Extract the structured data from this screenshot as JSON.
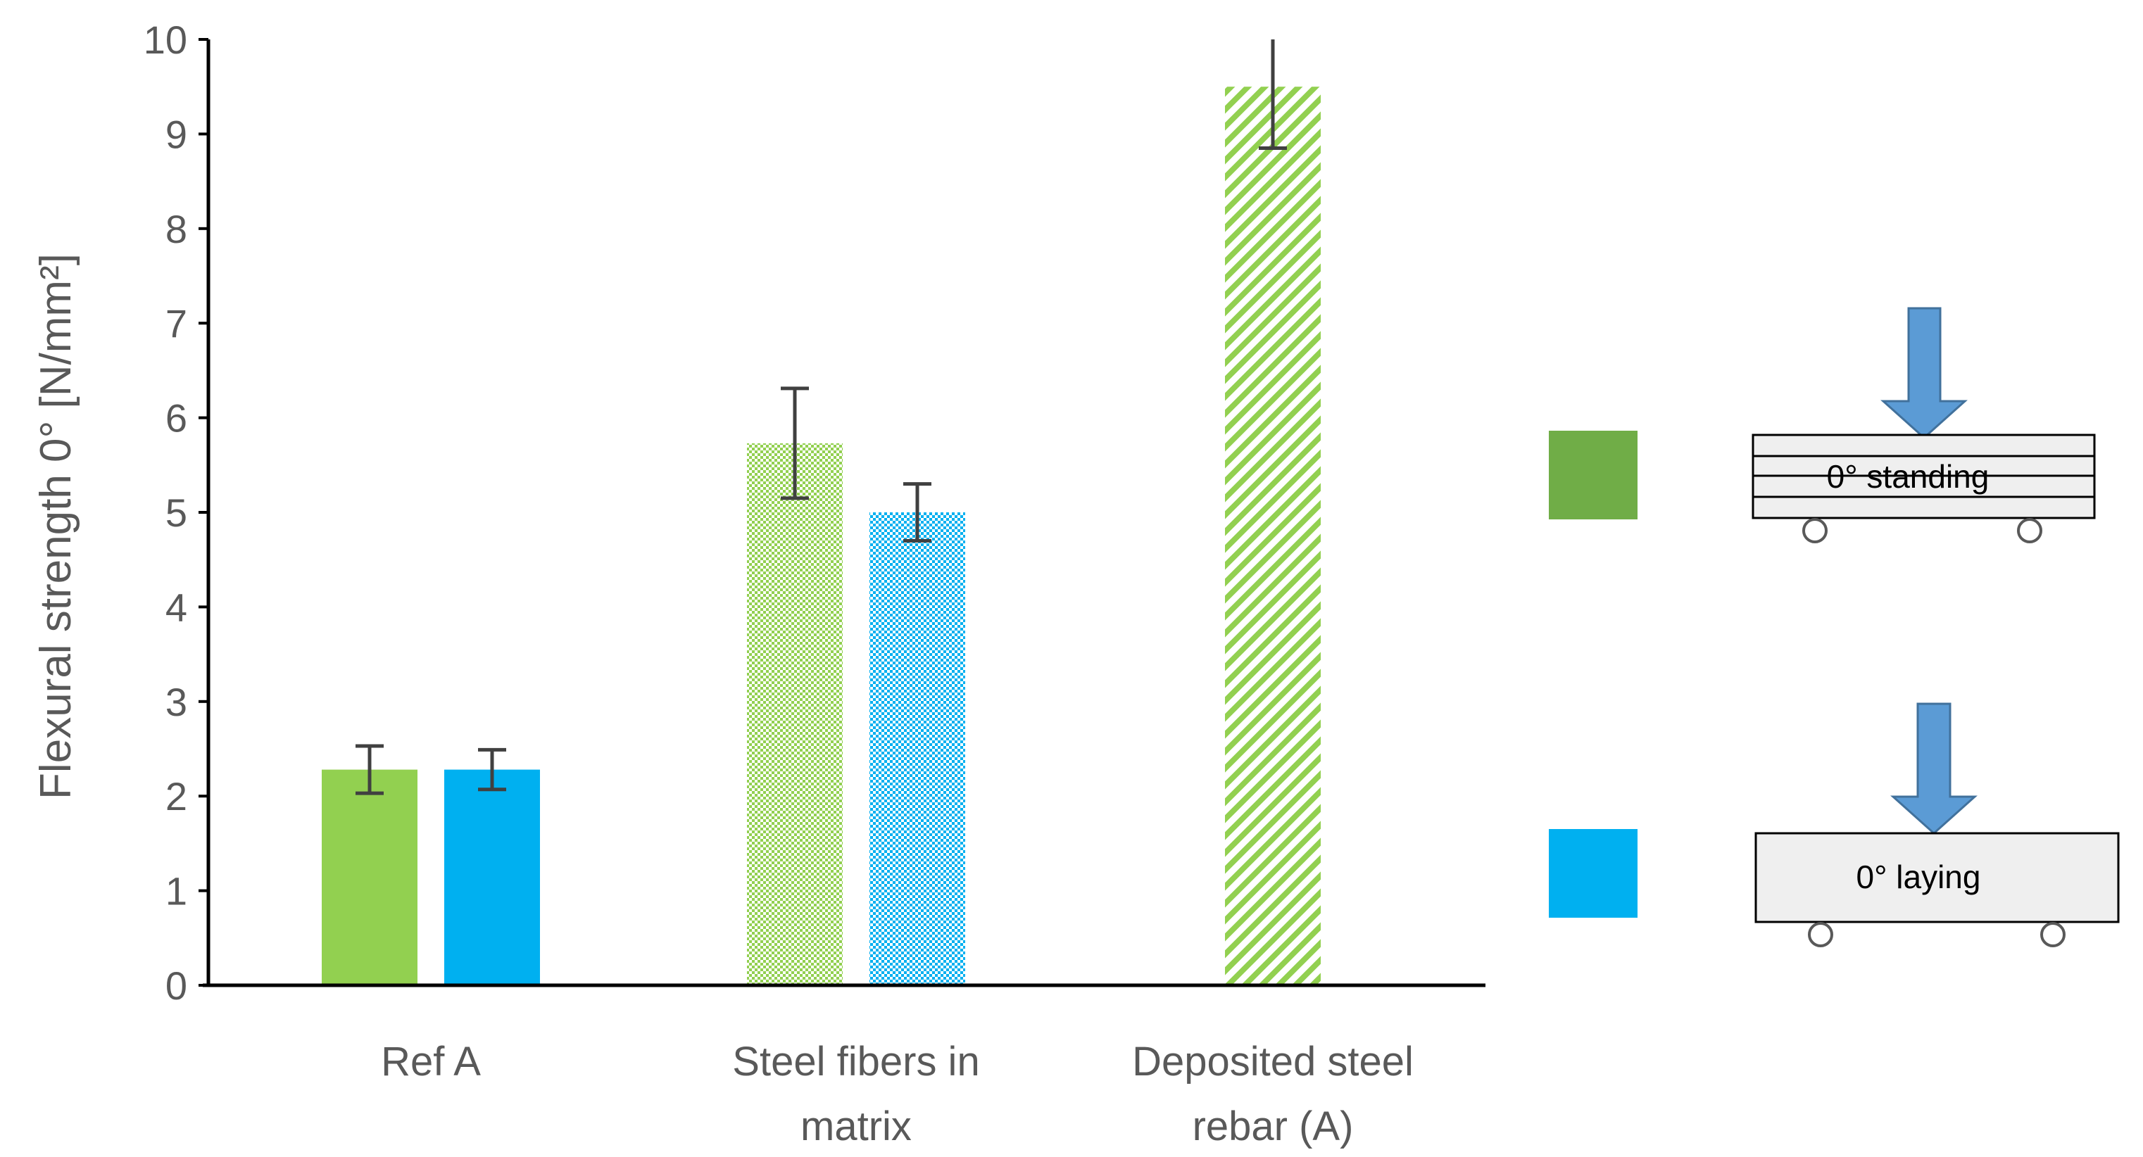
{
  "chart_data": {
    "type": "bar",
    "title": "",
    "xlabel": "",
    "ylabel": "Flexural strength 0° [N/mm²]",
    "ylim": [
      0,
      10
    ],
    "yticks": [
      0,
      1,
      2,
      3,
      4,
      5,
      6,
      7,
      8,
      9,
      10
    ],
    "grid": false,
    "categories": [
      {
        "lines": [
          "Ref A"
        ]
      },
      {
        "lines": [
          "Steel fibers in",
          "matrix"
        ]
      },
      {
        "lines": [
          "Deposited steel",
          "rebar (A)"
        ]
      }
    ],
    "series": [
      {
        "name": "0° standing",
        "color": "#92d050",
        "values": [
          2.28,
          5.73,
          9.5
        ],
        "errors": [
          0.25,
          0.58,
          0.65
        ],
        "fills": [
          "solid",
          "dotted",
          "striped"
        ]
      },
      {
        "name": "0° laying",
        "color": "#00b0f0",
        "values": [
          2.28,
          5.0,
          null
        ],
        "errors": [
          0.21,
          0.3,
          null
        ],
        "fills": [
          "solid",
          "dotted",
          null
        ]
      }
    ]
  },
  "legend": {
    "standing": {
      "label": "0° standing",
      "swatch_color": "#70ad47"
    },
    "laying": {
      "label": "0° laying",
      "swatch_color": "#00b0f0"
    },
    "arrow_color": "#5b9bd5"
  }
}
